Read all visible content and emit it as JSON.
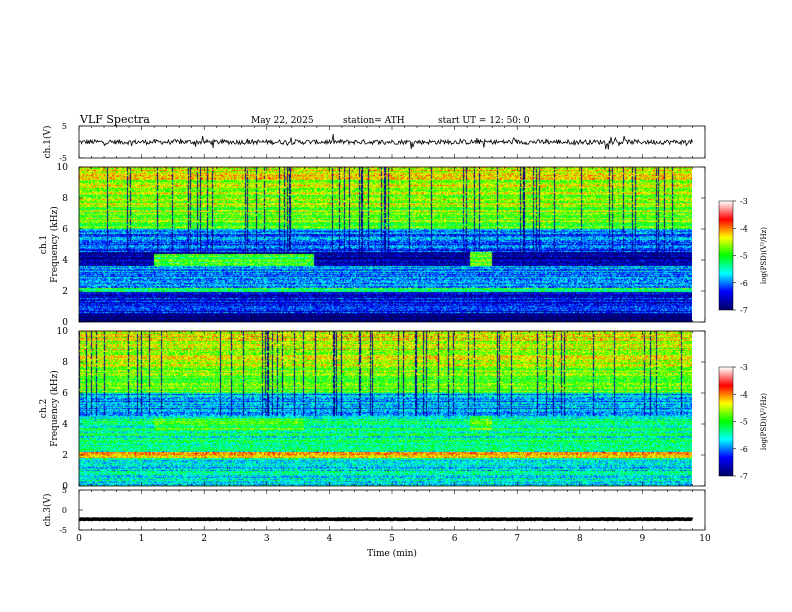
{
  "header": {
    "title": "VLF  Spectra",
    "date": "May 22, 2025",
    "station": "station= ATH",
    "start": "start  UT  =   12: 50: 0"
  },
  "colors": {
    "axis": "#000000",
    "trace": "#000000",
    "colormap": [
      "#000066",
      "#0000ff",
      "#00ffff",
      "#00ff00",
      "#ffff00",
      "#ff0000",
      "#ffffff"
    ]
  },
  "chart_data": [
    {
      "type": "line",
      "id": "ch1-waveform",
      "ylabel": "ch.1(V)",
      "ylim": [
        -5,
        5
      ],
      "yticks": [
        "5",
        "-5"
      ],
      "xlim": [
        0,
        10
      ],
      "series": [
        {
          "approx_level": 0,
          "noise_amplitude": 1.5
        }
      ]
    },
    {
      "type": "heatmap",
      "id": "ch1-spectrogram",
      "ylabel_line1": "ch.1",
      "ylabel_line2": "Frequency  (kHz)",
      "ylim": [
        0,
        10
      ],
      "yticks": [
        "10",
        "8",
        "6",
        "4",
        "2",
        "0"
      ],
      "xlim": [
        0,
        9.8
      ],
      "colorbar": {
        "label": "log(PSD)(V²/Hz)",
        "range": [
          -7,
          -3
        ],
        "ticks": [
          "-3",
          "-4",
          "-5",
          "-6",
          "-7"
        ]
      },
      "bands": [
        {
          "y0": 6.0,
          "y1": 10,
          "level": -5.0,
          "note": "broadband noise"
        },
        {
          "y0": 4.5,
          "y1": 6.0,
          "level": -6.2
        },
        {
          "y0": 3.6,
          "y1": 4.5,
          "level": -6.8
        },
        {
          "y0": 2.2,
          "y1": 3.6,
          "level": -6.0
        },
        {
          "y0": 1.9,
          "y1": 2.2,
          "level": -5.2
        },
        {
          "y0": 0.5,
          "y1": 1.9,
          "level": -6.4
        },
        {
          "y0": 0.0,
          "y1": 0.5,
          "level": -6.9
        }
      ],
      "events": [
        {
          "t0": 1.2,
          "t1": 3.75,
          "f0": 3.6,
          "f1": 4.4,
          "level": -5.0
        },
        {
          "t0": 6.25,
          "t1": 6.6,
          "f0": 3.6,
          "f1": 4.5,
          "level": -4.8
        }
      ]
    },
    {
      "type": "heatmap",
      "id": "ch2-spectrogram",
      "ylabel_line1": "ch.2",
      "ylabel_line2": "Frequency  (kHz)",
      "ylim": [
        0,
        10
      ],
      "yticks": [
        "10",
        "8",
        "6",
        "4",
        "2",
        "0"
      ],
      "xlim": [
        0,
        9.8
      ],
      "colorbar": {
        "label": "log(PSD)(V²/Hz)",
        "range": [
          -7,
          -3
        ],
        "ticks": [
          "-3",
          "-4",
          "-5",
          "-6",
          "-7"
        ]
      },
      "bands": [
        {
          "y0": 6.0,
          "y1": 10,
          "level": -5.0,
          "note": "broadband noise"
        },
        {
          "y0": 4.5,
          "y1": 6.0,
          "level": -6.0
        },
        {
          "y0": 3.4,
          "y1": 4.5,
          "level": -5.3
        },
        {
          "y0": 2.2,
          "y1": 3.4,
          "level": -5.4
        },
        {
          "y0": 1.8,
          "y1": 2.2,
          "level": -4.2
        },
        {
          "y0": 0.0,
          "y1": 1.8,
          "level": -5.6
        }
      ],
      "events": [
        {
          "t0": 1.2,
          "t1": 3.6,
          "f0": 3.6,
          "f1": 4.4,
          "level": -4.9
        },
        {
          "t0": 6.25,
          "t1": 6.6,
          "f0": 3.6,
          "f1": 4.5,
          "level": -4.8
        }
      ]
    },
    {
      "type": "line",
      "id": "ch3-waveform",
      "ylabel": "ch.3(V)",
      "ylim": [
        -5,
        5
      ],
      "yticks": [
        "5",
        "0",
        "-5"
      ],
      "xlabel": "Time  (min)",
      "xlim": [
        0,
        10
      ],
      "xticks": [
        "0",
        "1",
        "2",
        "3",
        "4",
        "5",
        "6",
        "7",
        "8",
        "9",
        "10"
      ],
      "series": [
        {
          "approx_level": -2.3,
          "noise_amplitude": 0.15
        }
      ]
    }
  ]
}
